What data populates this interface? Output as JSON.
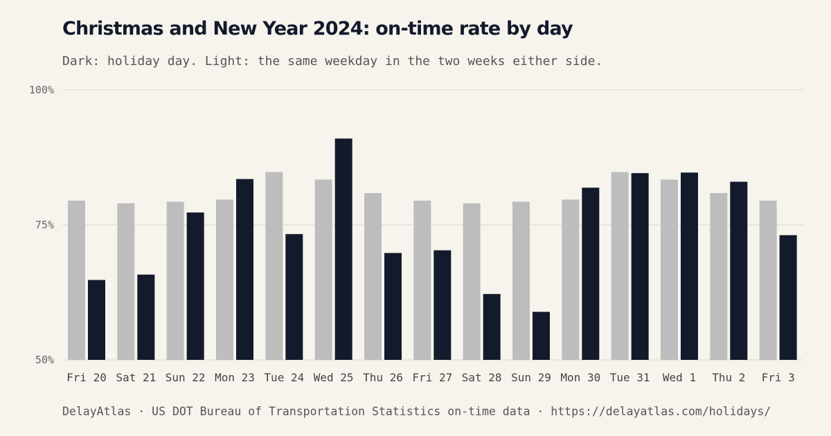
{
  "title": "Christmas and New Year 2024: on-time rate by day",
  "subtitle": "Dark: holiday day. Light: the same weekday in the two weeks either side.",
  "footer": "DelayAtlas · US DOT Bureau of Transportation Statistics on-time data · https://delayatlas.com/holidays/",
  "colors": {
    "background": "#f7f4ee",
    "holiday": "#131a2b",
    "baseline": "#bdbdbd",
    "grid": "#e4e1da"
  },
  "chart_data": {
    "type": "bar",
    "categories": [
      "Fri 20",
      "Sat 21",
      "Sun 22",
      "Mon 23",
      "Tue 24",
      "Wed 25",
      "Thu 26",
      "Fri 27",
      "Sat 28",
      "Sun 29",
      "Mon 30",
      "Tue 31",
      "Wed 1",
      "Thu 2",
      "Fri 3"
    ],
    "series": [
      {
        "values": [
          79.5,
          79.0,
          79.3,
          79.7,
          84.8,
          83.4,
          80.9,
          79.5,
          79.0,
          79.3,
          79.7,
          84.8,
          83.4,
          80.9,
          79.5
        ]
      },
      {
        "values": [
          64.8,
          65.8,
          77.3,
          83.5,
          73.3,
          91.0,
          69.8,
          70.3,
          62.2,
          58.9,
          81.9,
          84.6,
          84.7,
          83.0,
          73.1
        ]
      }
    ],
    "ylim": [
      50,
      100
    ],
    "yticks": [
      "50%",
      "75%",
      "100%"
    ],
    "grid": true
  }
}
